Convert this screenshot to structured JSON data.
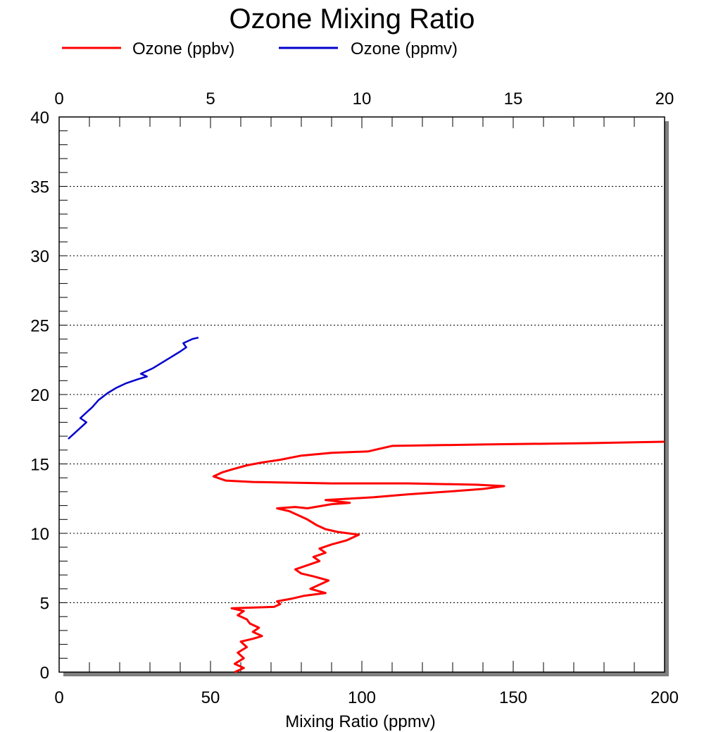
{
  "chart_data": {
    "type": "line",
    "title": "Ozone Mixing Ratio",
    "xlabel": "Mixing Ratio (ppmv)",
    "ylabel": "",
    "xlim": [
      0,
      200
    ],
    "x2lim": [
      0,
      20
    ],
    "ylim": [
      0,
      40
    ],
    "x_ticks": [
      "0",
      "50",
      "100",
      "150",
      "200"
    ],
    "x2_ticks": [
      "0",
      "5",
      "10",
      "15",
      "20"
    ],
    "y_ticks": [
      "0",
      "5",
      "10",
      "15",
      "20",
      "25",
      "30",
      "35",
      "40"
    ],
    "grid": "horizontal dotted at major y ticks",
    "legend_placement": "top-left",
    "series": [
      {
        "name": "Ozone (ppbv)",
        "color": "#ff0000",
        "axis": "bottom",
        "points": [
          [
            58,
            0
          ],
          [
            61,
            0.3
          ],
          [
            58,
            0.6
          ],
          [
            61,
            1.0
          ],
          [
            59,
            1.4
          ],
          [
            62,
            1.8
          ],
          [
            60,
            2.2
          ],
          [
            64,
            2.4
          ],
          [
            67,
            2.6
          ],
          [
            64,
            2.9
          ],
          [
            66,
            3.2
          ],
          [
            63,
            3.5
          ],
          [
            62,
            3.8
          ],
          [
            59,
            4.1
          ],
          [
            61,
            4.4
          ],
          [
            57,
            4.6
          ],
          [
            71,
            4.7
          ],
          [
            73,
            4.9
          ],
          [
            72,
            5.1
          ],
          [
            77,
            5.3
          ],
          [
            81,
            5.5
          ],
          [
            88,
            5.7
          ],
          [
            83,
            6.0
          ],
          [
            86,
            6.3
          ],
          [
            89,
            6.6
          ],
          [
            84,
            6.9
          ],
          [
            80,
            7.1
          ],
          [
            78,
            7.4
          ],
          [
            82,
            7.7
          ],
          [
            86,
            8.0
          ],
          [
            84,
            8.3
          ],
          [
            88,
            8.6
          ],
          [
            86,
            8.9
          ],
          [
            90,
            9.2
          ],
          [
            95,
            9.5
          ],
          [
            99,
            9.9
          ],
          [
            92,
            10.1
          ],
          [
            88,
            10.3
          ],
          [
            85,
            10.6
          ],
          [
            82,
            11.0
          ],
          [
            79,
            11.3
          ],
          [
            76,
            11.6
          ],
          [
            72,
            11.8
          ],
          [
            78,
            11.9
          ],
          [
            82,
            11.8
          ],
          [
            90,
            12.1
          ],
          [
            96,
            12.2
          ],
          [
            88,
            12.4
          ],
          [
            104,
            12.6
          ],
          [
            115,
            12.8
          ],
          [
            128,
            13.0
          ],
          [
            140,
            13.2
          ],
          [
            147,
            13.4
          ],
          [
            138,
            13.5
          ],
          [
            115,
            13.6
          ],
          [
            90,
            13.6
          ],
          [
            64,
            13.7
          ],
          [
            55,
            13.8
          ],
          [
            51,
            14.1
          ],
          [
            54,
            14.4
          ],
          [
            57,
            14.6
          ],
          [
            62,
            14.9
          ],
          [
            67,
            15.1
          ],
          [
            73,
            15.3
          ],
          [
            80,
            15.6
          ],
          [
            90,
            15.8
          ],
          [
            102,
            15.9
          ],
          [
            110,
            16.3
          ],
          [
            140,
            16.4
          ],
          [
            175,
            16.5
          ],
          [
            200,
            16.6
          ]
        ]
      },
      {
        "name": "Ozone (ppmv)",
        "color": "#0000cc",
        "axis": "top",
        "points": [
          [
            0.3,
            16.8
          ],
          [
            0.5,
            17.2
          ],
          [
            0.7,
            17.6
          ],
          [
            0.9,
            18.0
          ],
          [
            0.7,
            18.3
          ],
          [
            0.9,
            18.7
          ],
          [
            1.1,
            19.1
          ],
          [
            1.3,
            19.6
          ],
          [
            1.6,
            20.1
          ],
          [
            1.9,
            20.5
          ],
          [
            2.2,
            20.8
          ],
          [
            2.6,
            21.1
          ],
          [
            2.9,
            21.3
          ],
          [
            2.7,
            21.5
          ],
          [
            3.1,
            21.9
          ],
          [
            3.4,
            22.3
          ],
          [
            3.7,
            22.7
          ],
          [
            4.0,
            23.1
          ],
          [
            4.2,
            23.4
          ],
          [
            4.1,
            23.7
          ],
          [
            4.4,
            24.0
          ],
          [
            4.6,
            24.1
          ]
        ]
      }
    ]
  }
}
